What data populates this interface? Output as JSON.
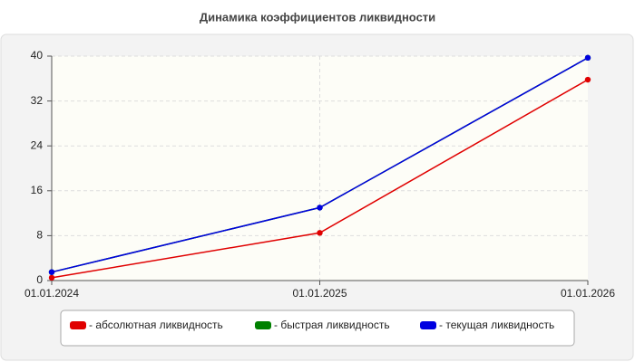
{
  "chart_data": {
    "type": "line",
    "title": "Динамика коэффициентов ликвидности",
    "categories": [
      "01.01.2024",
      "01.01.2025",
      "01.01.2026"
    ],
    "series": [
      {
        "name": "- абсолютная ликвидность",
        "color": "#e00000",
        "values": [
          0.5,
          8.5,
          35.8
        ]
      },
      {
        "name": "- быстрая ликвидность",
        "color": "#008000",
        "values": [
          1.5,
          13,
          39.7
        ]
      },
      {
        "name": "- текущая ликвидность",
        "color": "#0000e0",
        "values": [
          1.5,
          13,
          39.7
        ]
      }
    ],
    "ylim": [
      0,
      40
    ],
    "yticks": [
      0,
      8,
      16,
      24,
      32,
      40
    ],
    "grid": true
  }
}
